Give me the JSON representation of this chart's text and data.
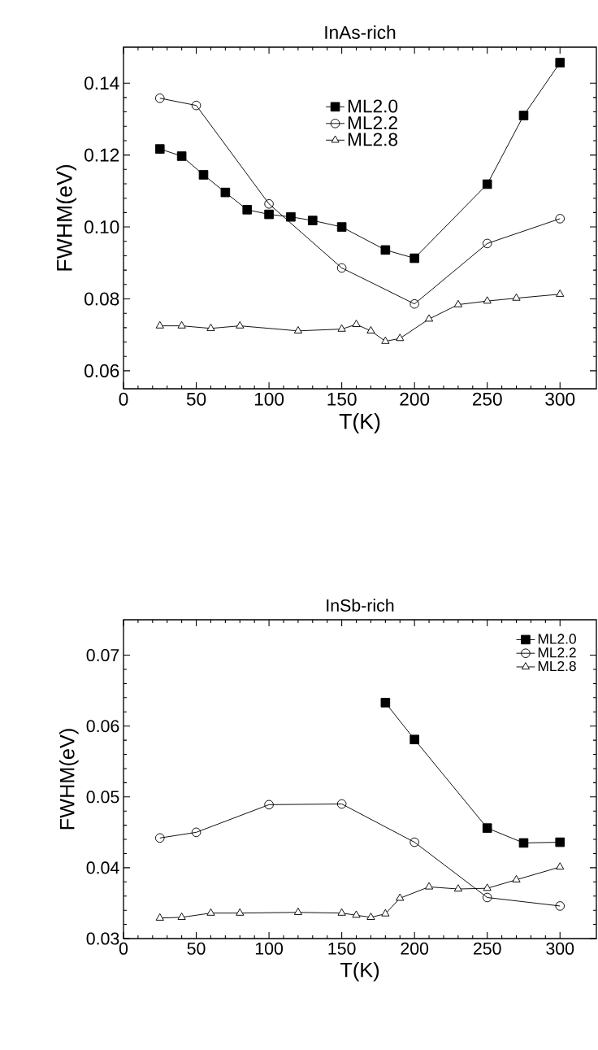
{
  "chart_data": [
    {
      "type": "line",
      "title": "InAs-rich",
      "xlabel": "T(K)",
      "ylabel": "FWHM(eV)",
      "xlim": [
        0,
        325
      ],
      "ylim": [
        0.055,
        0.15
      ],
      "xticks": [
        0,
        50,
        100,
        150,
        200,
        250,
        300
      ],
      "yticks": [
        0.06,
        0.08,
        {
          "value": 0.1,
          "label": "0.10"
        },
        0.12,
        0.14
      ],
      "legend": "top",
      "line_style": "solid",
      "series": [
        {
          "name": "ML2.0",
          "color": "#000000",
          "marker": "square",
          "x": [
            25,
            40,
            55,
            70,
            85,
            100,
            115,
            130,
            150,
            180,
            200,
            250,
            275,
            300
          ],
          "values": [
            0.1217,
            0.1197,
            0.1145,
            0.1096,
            0.1048,
            0.1035,
            0.1028,
            0.1018,
            0.1,
            0.0936,
            0.0913,
            0.1119,
            0.131,
            0.1457
          ]
        },
        {
          "name": "ML2.2",
          "color": "#000000",
          "marker": "circle",
          "x": [
            25,
            50,
            100,
            150,
            200,
            250,
            300
          ],
          "values": [
            0.1358,
            0.1338,
            0.1064,
            0.0886,
            0.0786,
            0.0954,
            0.1023
          ]
        },
        {
          "name": "ML2.8",
          "color": "#000000",
          "marker": "triangle",
          "x": [
            25,
            40,
            60,
            80,
            120,
            150,
            160,
            170,
            180,
            190,
            210,
            230,
            250,
            270,
            300
          ],
          "values": [
            0.0725,
            0.0725,
            0.0718,
            0.0725,
            0.0711,
            0.0716,
            0.0729,
            0.0711,
            0.0682,
            0.069,
            0.0744,
            0.0784,
            0.0794,
            0.0802,
            0.0813
          ]
        }
      ]
    },
    {
      "type": "line",
      "title": "InSb-rich",
      "xlabel": "T(K)",
      "ylabel": "FWHM(eV)",
      "xlim": [
        0,
        325
      ],
      "ylim": [
        0.03,
        0.075
      ],
      "xticks": [
        0,
        50,
        100,
        150,
        200,
        250,
        300
      ],
      "yticks": [
        0.03,
        0.04,
        0.05,
        0.06,
        0.07
      ],
      "legend": "top right",
      "line_style": "solid",
      "series": [
        {
          "name": "ML2.0",
          "color": "#000000",
          "marker": "square",
          "x": [
            180,
            200,
            250,
            275,
            300
          ],
          "values": [
            0.0633,
            0.0581,
            0.0456,
            0.0435,
            0.0436
          ]
        },
        {
          "name": "ML2.2",
          "color": "#000000",
          "marker": "circle",
          "x": [
            25,
            50,
            100,
            150,
            200,
            250,
            300
          ],
          "values": [
            0.0442,
            0.045,
            0.0489,
            0.049,
            0.0436,
            0.0358,
            0.0346
          ]
        },
        {
          "name": "ML2.8",
          "color": "#000000",
          "marker": "triangle",
          "x": [
            25,
            40,
            60,
            80,
            120,
            150,
            160,
            170,
            180,
            190,
            210,
            230,
            250,
            270,
            300
          ],
          "values": [
            0.0329,
            0.033,
            0.0336,
            0.0336,
            0.0337,
            0.0336,
            0.0333,
            0.033,
            0.0335,
            0.0357,
            0.0373,
            0.037,
            0.0371,
            0.0383,
            0.0401
          ]
        }
      ]
    }
  ]
}
